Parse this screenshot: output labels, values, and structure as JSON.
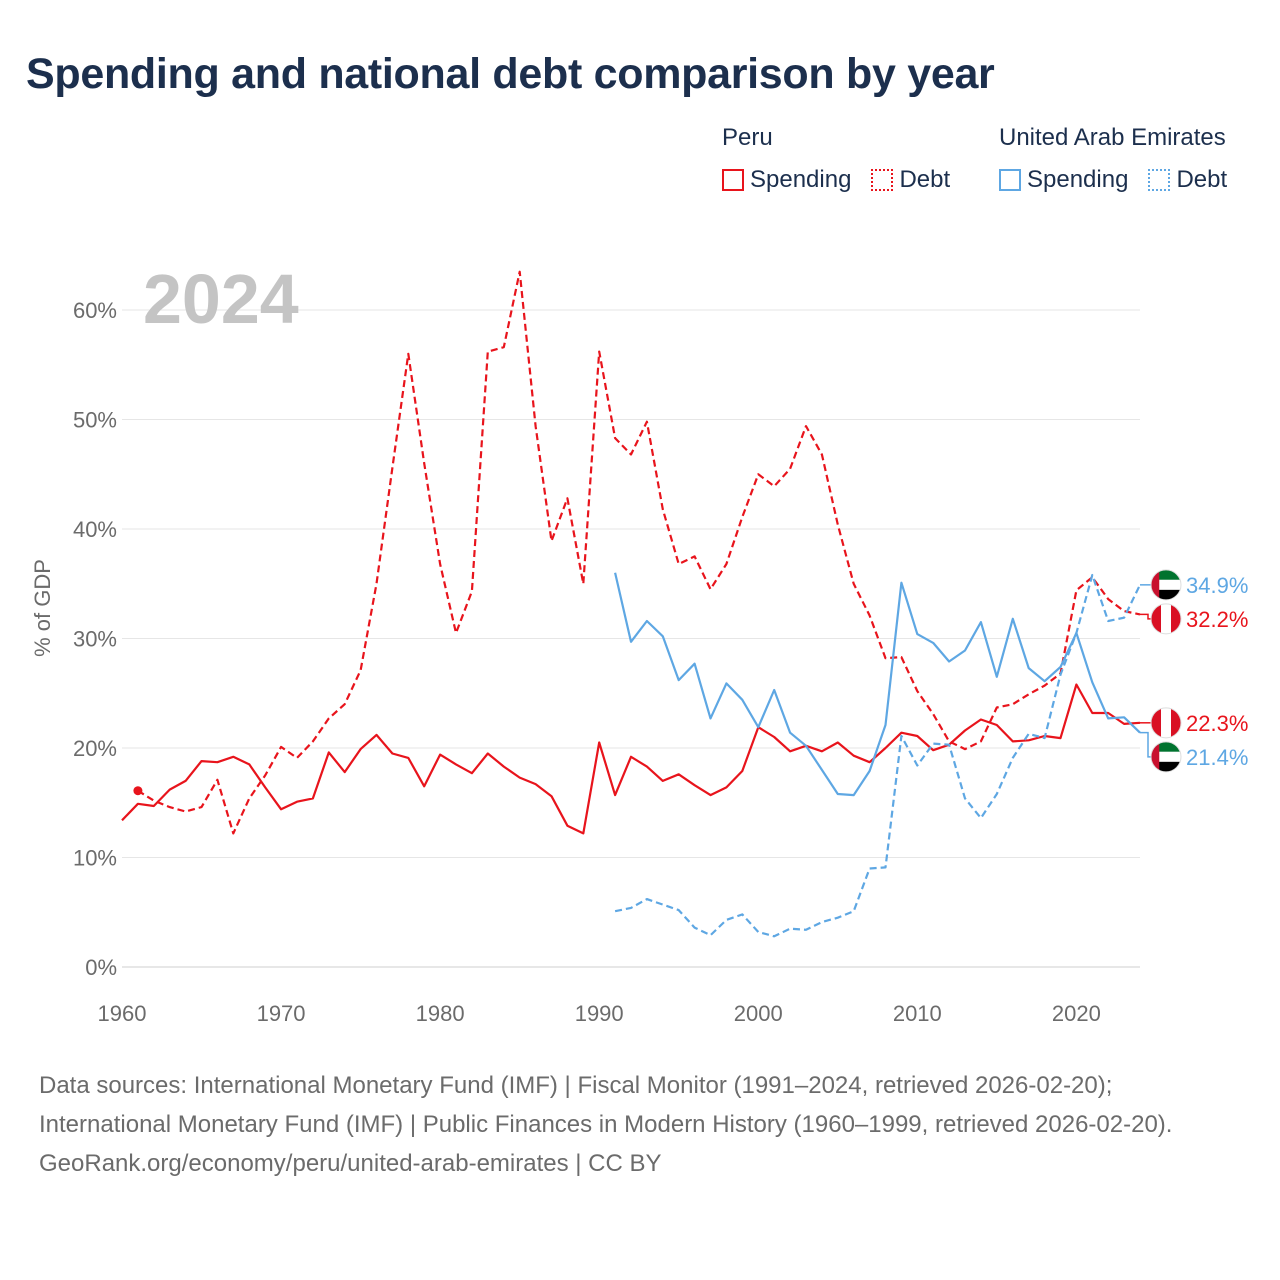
{
  "title": "Spending and national debt comparison by year",
  "legend": {
    "groups": [
      {
        "country": "Peru",
        "items": [
          {
            "label": "Spending",
            "style": "solid",
            "color": "#e8141c"
          },
          {
            "label": "Debt",
            "style": "dotted",
            "color": "#e8141c"
          }
        ]
      },
      {
        "country": "United Arab Emirates",
        "items": [
          {
            "label": "Spending",
            "style": "solid",
            "color": "#5ea7e3"
          },
          {
            "label": "Debt",
            "style": "dotted",
            "color": "#5ea7e3"
          }
        ]
      }
    ]
  },
  "footer": {
    "sources": "Data sources: International Monetary Fund (IMF) | Fiscal Monitor (1991–2024, retrieved 2026-02-20); International Monetary Fund (IMF) | Public Finances in Modern History (1960–1999, retrieved 2026-02-20).",
    "credit": "GeoRank.org/economy/peru/united-arab-emirates | CC BY"
  },
  "chart_data": {
    "type": "line",
    "year_label": "2024",
    "ylabel": "% of GDP",
    "xlim": [
      1960,
      2024
    ],
    "ylim": [
      0,
      65
    ],
    "x_ticks": [
      1960,
      1970,
      1980,
      1990,
      2000,
      2010,
      2020
    ],
    "x_tick_labels": [
      "1960",
      "1970",
      "1980",
      "1990",
      "2000",
      "2010",
      "2020"
    ],
    "y_ticks": [
      0,
      10,
      20,
      30,
      40,
      50,
      60
    ],
    "y_tick_labels": [
      "0%",
      "10%",
      "20%",
      "30%",
      "40%",
      "50%",
      "60%"
    ],
    "series": [
      {
        "name": "Peru Debt",
        "country": "Peru",
        "measure": "Debt",
        "color": "#e8141c",
        "dash": true,
        "start_year": 1961,
        "values": [
          16.1,
          15.2,
          14.6,
          14.2,
          14.6,
          17.1,
          12.2,
          15.4,
          17.5,
          20.1,
          19.1,
          20.6,
          22.7,
          24.0,
          27.1,
          35.0,
          45.6,
          56.0,
          46.0,
          36.8,
          30.5,
          34.3,
          56.2,
          56.6,
          63.5,
          49.4,
          38.9,
          42.8,
          35.0,
          56.2,
          48.3,
          46.8,
          49.8,
          41.8,
          36.8,
          37.5,
          34.5,
          36.8,
          41.1,
          45.0,
          43.9,
          45.5,
          49.4,
          46.8,
          40.4,
          35.0,
          32.1,
          28.2,
          28.3,
          25.2,
          23.1,
          20.6,
          19.9,
          20.6,
          23.7,
          24.0,
          24.9,
          25.7,
          26.8,
          34.4,
          35.6,
          33.6,
          32.5,
          32.2
        ]
      },
      {
        "name": "Peru Spending",
        "country": "Peru",
        "measure": "Spending",
        "color": "#e8141c",
        "dash": false,
        "start_year": 1960,
        "values": [
          13.4,
          14.9,
          14.7,
          16.2,
          17.0,
          18.8,
          18.7,
          19.2,
          18.5,
          16.4,
          14.4,
          15.1,
          15.4,
          19.6,
          17.8,
          19.9,
          21.2,
          19.5,
          19.1,
          16.5,
          19.4,
          18.5,
          17.7,
          19.5,
          18.3,
          17.3,
          16.7,
          15.6,
          12.9,
          12.2,
          20.5,
          15.7,
          19.2,
          18.3,
          17.0,
          17.6,
          16.6,
          15.7,
          16.4,
          17.9,
          21.9,
          21.0,
          19.7,
          20.2,
          19.7,
          20.5,
          19.3,
          18.7,
          20.0,
          21.4,
          21.1,
          19.8,
          20.3,
          21.6,
          22.6,
          22.1,
          20.6,
          20.7,
          21.1,
          20.9,
          25.8,
          23.2,
          23.2,
          22.2,
          22.3
        ]
      },
      {
        "name": "UAE Spending",
        "country": "United Arab Emirates",
        "measure": "Spending",
        "color": "#5ea7e3",
        "dash": false,
        "start_year": 1991,
        "values": [
          36.0,
          29.7,
          31.6,
          30.2,
          26.2,
          27.7,
          22.7,
          25.9,
          24.4,
          21.9,
          25.3,
          21.4,
          20.2,
          18.0,
          15.8,
          15.7,
          17.9,
          22.1,
          35.1,
          30.4,
          29.6,
          27.9,
          28.9,
          31.5,
          26.5,
          31.8,
          27.3,
          26.1,
          27.4,
          30.5,
          26.0,
          22.7,
          22.8,
          21.4
        ]
      },
      {
        "name": "UAE Debt",
        "country": "United Arab Emirates",
        "measure": "Debt",
        "color": "#5ea7e3",
        "dash": true,
        "start_year": 1991,
        "values": [
          5.1,
          5.4,
          6.2,
          5.7,
          5.2,
          3.6,
          2.9,
          4.3,
          4.8,
          3.2,
          2.8,
          3.5,
          3.4,
          4.1,
          4.5,
          5.1,
          9.0,
          9.1,
          21.1,
          18.4,
          20.4,
          20.3,
          15.4,
          13.6,
          15.8,
          19.1,
          21.3,
          20.9,
          26.7,
          30.5,
          35.8,
          31.6,
          31.9,
          34.9
        ]
      }
    ],
    "end_labels": [
      {
        "text": "34.9%",
        "series": "UAE Debt",
        "color": "#5ea7e3",
        "flag": "uae"
      },
      {
        "text": "32.2%",
        "series": "Peru Debt",
        "color": "#e8141c",
        "flag": "peru"
      },
      {
        "text": "22.3%",
        "series": "Peru Spending",
        "color": "#e8141c",
        "flag": "peru"
      },
      {
        "text": "21.4%",
        "series": "UAE Spending",
        "color": "#5ea7e3",
        "flag": "uae"
      }
    ]
  }
}
